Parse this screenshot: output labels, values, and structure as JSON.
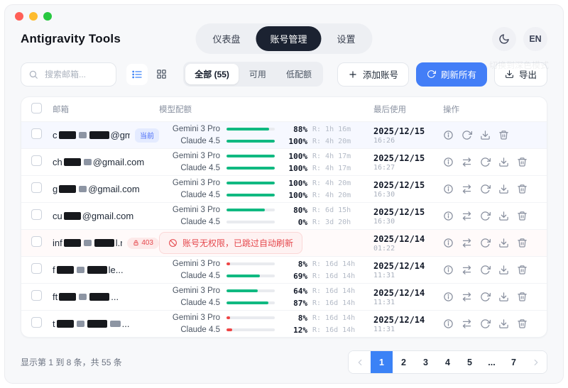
{
  "window": {
    "title": "Antigravity Tools",
    "traffic_lights": [
      "#ff5f57",
      "#febc2e",
      "#28c840"
    ],
    "nav_tabs": [
      {
        "name": "dashboard",
        "label": "仪表盘",
        "active": false
      },
      {
        "name": "accounts",
        "label": "账号管理",
        "active": true
      },
      {
        "name": "settings",
        "label": "设置",
        "active": false
      }
    ],
    "lang_label": "EN",
    "theme_tooltip": "切换到深色模式"
  },
  "toolbar": {
    "search_placeholder": "搜索邮箱...",
    "filters": [
      {
        "name": "all",
        "label": "全部 (55)",
        "active": true
      },
      {
        "name": "available",
        "label": "可用",
        "active": false
      },
      {
        "name": "low-quota",
        "label": "低配额",
        "active": false
      }
    ],
    "add_label": "添加账号",
    "refresh_all_label": "刷新所有",
    "export_label": "导出"
  },
  "table": {
    "headers": {
      "email": "邮箱",
      "quota": "模型配额",
      "last_used": "最后使用",
      "actions": "操作"
    },
    "rows": [
      {
        "email": {
          "prefix": "c",
          "blocks": 3,
          "suffix": "@gmail.com"
        },
        "badge": {
          "type": "current",
          "label": "当前"
        },
        "models": [
          {
            "name": "Gemini 3 Pro",
            "percent": 88,
            "remaining": "R: 1h 16m",
            "color": "#10b981"
          },
          {
            "name": "Claude 4.5",
            "percent": 100,
            "remaining": "R: 4h 20m",
            "color": "#10b981"
          }
        ],
        "date": "2025/12/15",
        "time": "16:26",
        "actions": [
          "info",
          "refresh",
          "download",
          "trash"
        ],
        "highlight": "current"
      },
      {
        "email": {
          "prefix": "ch",
          "blocks": 2,
          "suffix": "@gmail.com"
        },
        "badge": null,
        "models": [
          {
            "name": "Gemini 3 Pro",
            "percent": 100,
            "remaining": "R: 4h 17m",
            "color": "#10b981"
          },
          {
            "name": "Claude 4.5",
            "percent": 100,
            "remaining": "R: 4h 17m",
            "color": "#10b981"
          }
        ],
        "date": "2025/12/15",
        "time": "16:27",
        "actions": [
          "info",
          "swap",
          "refresh",
          "download",
          "trash"
        ],
        "highlight": null
      },
      {
        "email": {
          "prefix": "g",
          "blocks": 2,
          "suffix": "@gmail.com"
        },
        "badge": null,
        "models": [
          {
            "name": "Gemini 3 Pro",
            "percent": 100,
            "remaining": "R: 4h 20m",
            "color": "#10b981"
          },
          {
            "name": "Claude 4.5",
            "percent": 100,
            "remaining": "R: 4h 20m",
            "color": "#10b981"
          }
        ],
        "date": "2025/12/15",
        "time": "16:30",
        "actions": [
          "info",
          "swap",
          "refresh",
          "download",
          "trash"
        ],
        "highlight": null
      },
      {
        "email": {
          "prefix": "cu",
          "blocks": 1,
          "suffix": "@gmail.com"
        },
        "badge": null,
        "models": [
          {
            "name": "Gemini 3 Pro",
            "percent": 80,
            "remaining": "R: 6d 15h",
            "color": "#10b981"
          },
          {
            "name": "Claude 4.5",
            "percent": 0,
            "remaining": "R: 3d 20h",
            "color": "#10b981"
          }
        ],
        "date": "2025/12/15",
        "time": "16:30",
        "actions": [
          "info",
          "swap",
          "refresh",
          "download",
          "trash"
        ],
        "highlight": null
      },
      {
        "email": {
          "prefix": "inf",
          "blocks": 3,
          "suffix": "l.me"
        },
        "badge": {
          "type": "403",
          "label": "403"
        },
        "models": null,
        "error": "账号无权限，已跳过自动刷新",
        "date": "2025/12/14",
        "time": "01:22",
        "actions": [
          "info",
          "swap",
          "refresh",
          "download",
          "trash"
        ],
        "highlight": "error"
      },
      {
        "email": {
          "prefix": "f",
          "blocks": 3,
          "suffix": "le..."
        },
        "badge": null,
        "models": [
          {
            "name": "Gemini 3 Pro",
            "percent": 8,
            "remaining": "R: 16d 14h",
            "color": "#ef4444"
          },
          {
            "name": "Claude 4.5",
            "percent": 69,
            "remaining": "R: 16d 14h",
            "color": "#10b981"
          }
        ],
        "date": "2025/12/14",
        "time": "11:31",
        "actions": [
          "info",
          "swap",
          "refresh",
          "download",
          "trash"
        ],
        "highlight": null
      },
      {
        "email": {
          "prefix": "ft",
          "blocks": 3,
          "suffix": "..."
        },
        "badge": null,
        "models": [
          {
            "name": "Gemini 3 Pro",
            "percent": 64,
            "remaining": "R: 16d 14h",
            "color": "#10b981"
          },
          {
            "name": "Claude 4.5",
            "percent": 87,
            "remaining": "R: 16d 14h",
            "color": "#10b981"
          }
        ],
        "date": "2025/12/14",
        "time": "11:31",
        "actions": [
          "info",
          "swap",
          "refresh",
          "download",
          "trash"
        ],
        "highlight": null
      },
      {
        "email": {
          "prefix": "t",
          "blocks": 4,
          "suffix": "..."
        },
        "badge": null,
        "models": [
          {
            "name": "Gemini 3 Pro",
            "percent": 8,
            "remaining": "R: 16d 14h",
            "color": "#ef4444"
          },
          {
            "name": "Claude 4.5",
            "percent": 12,
            "remaining": "R: 16d 14h",
            "color": "#ef4444"
          }
        ],
        "date": "2025/12/14",
        "time": "11:31",
        "actions": [
          "info",
          "swap",
          "refresh",
          "download",
          "trash"
        ],
        "highlight": null
      }
    ]
  },
  "footer": {
    "summary": "显示第 1 到 8 条，共 55 条",
    "pages": [
      "1",
      "2",
      "3",
      "4",
      "5",
      "...",
      "7"
    ],
    "active_page": "1"
  },
  "colors": {
    "accent_blue": "#437ef7",
    "green": "#10b981",
    "red": "#ef4444",
    "active_tab_bg": "#1b2231"
  }
}
